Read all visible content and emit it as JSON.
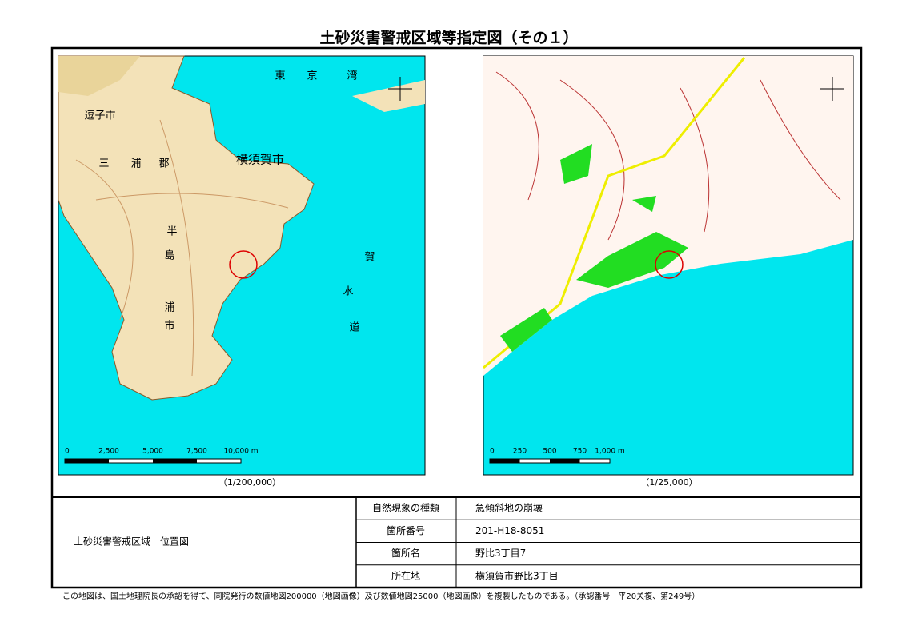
{
  "title": "土砂災害警戒区域等指定図（その１）",
  "maps": [
    {
      "labels": [
        "東",
        "京",
        "湾",
        "逗子市",
        "横須賀市",
        "三",
        "浦",
        "郡",
        "半",
        "島",
        "市",
        "浦",
        "賀",
        "水",
        "道"
      ],
      "scale_labels": [
        "0",
        "2,500",
        "5,000",
        "7,500",
        "10,000 m"
      ],
      "scale": "（1/200,000）"
    },
    {
      "labels": [],
      "scale_labels": [
        "0",
        "250",
        "500",
        "750",
        "1,000 m"
      ],
      "scale": "（1/25,000）"
    }
  ],
  "table": {
    "heading": "土砂災害警戒区域　位置図",
    "rows": [
      [
        "自然現象の種類",
        "急傾斜地の崩壊"
      ],
      [
        "箇所番号",
        "201-H18-8051"
      ],
      [
        "箇所名",
        "野比3丁目7"
      ],
      [
        "所在地",
        "横須賀市野比3丁目"
      ]
    ]
  },
  "footer": "この地図は、国土地理院長の承認を得て、同院発行の数値地図200000（地図画像）及び数値地図25000（地図画像）を複製したものである。（承認番号　平20关複、第249号）"
}
